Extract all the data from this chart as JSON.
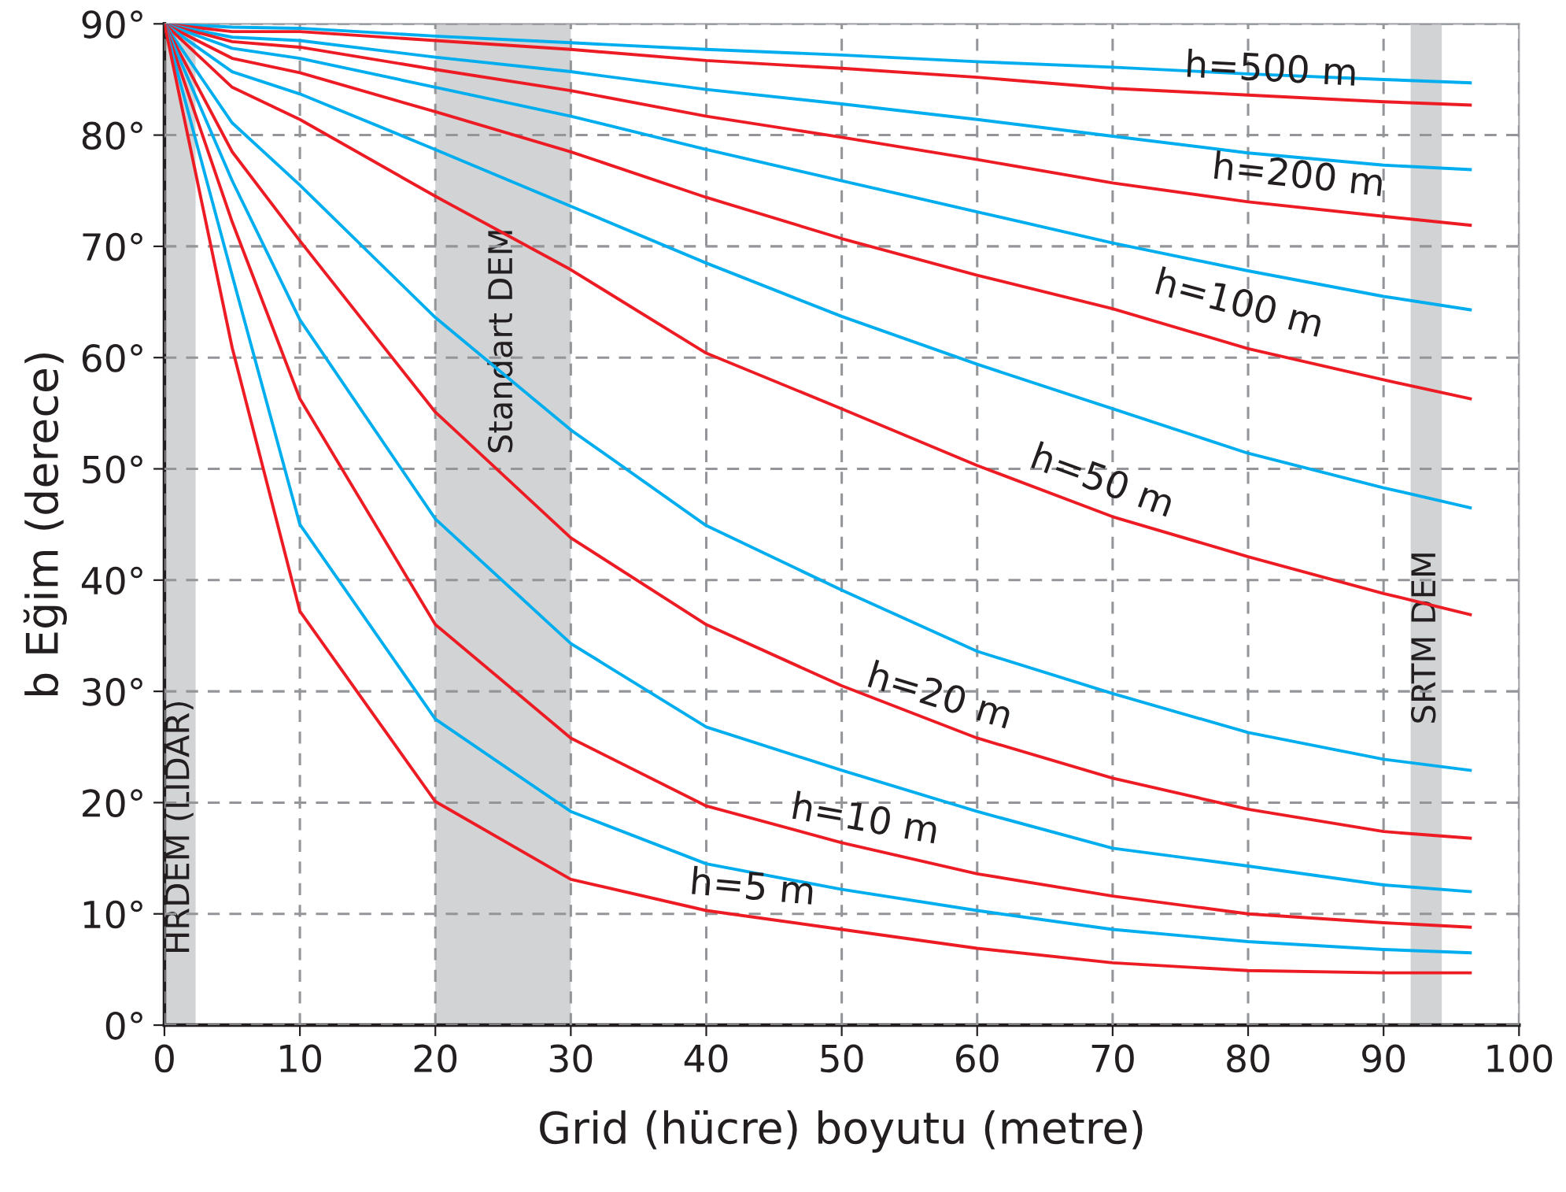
{
  "chart_data": {
    "type": "line",
    "xlabel": "Grid (hücre) boyutu (metre)",
    "ylabel": "b Eğim (derece)",
    "x": [
      0,
      5,
      10,
      20,
      30,
      40,
      50,
      60,
      70,
      80,
      90,
      96.4
    ],
    "series": [
      {
        "color": "#00aeef",
        "values": [
          90,
          89.7,
          89.6,
          88.9,
          88.3,
          87.7,
          87.2,
          86.6,
          86.1,
          85.5,
          85.0,
          84.7
        ]
      },
      {
        "color": "#ed1c24",
        "values": [
          90,
          89.3,
          89.3,
          88.5,
          87.7,
          86.7,
          86.0,
          85.2,
          84.2,
          83.6,
          83.0,
          82.7
        ]
      },
      {
        "color": "#00aeef",
        "values": [
          90,
          88.8,
          88.5,
          87.0,
          85.7,
          84.1,
          82.8,
          81.4,
          79.9,
          78.4,
          77.3,
          76.9
        ]
      },
      {
        "color": "#ed1c24",
        "values": [
          90,
          88.4,
          87.9,
          85.9,
          84.0,
          81.7,
          79.8,
          77.8,
          75.7,
          74.0,
          72.7,
          71.9
        ]
      },
      {
        "color": "#00aeef",
        "values": [
          90,
          87.8,
          86.9,
          84.3,
          81.7,
          78.7,
          75.9,
          73.1,
          70.3,
          67.8,
          65.5,
          64.3
        ]
      },
      {
        "color": "#ed1c24",
        "values": [
          90,
          86.9,
          85.6,
          82.1,
          78.5,
          74.4,
          70.7,
          67.4,
          64.4,
          60.8,
          58.0,
          56.3
        ]
      },
      {
        "color": "#00aeef",
        "values": [
          90,
          85.7,
          83.7,
          78.7,
          73.6,
          68.5,
          63.7,
          59.4,
          55.4,
          51.4,
          48.3,
          46.5
        ]
      },
      {
        "color": "#ed1c24",
        "values": [
          90,
          84.3,
          81.4,
          74.5,
          67.9,
          60.4,
          55.4,
          50.3,
          45.7,
          42.1,
          38.8,
          36.9
        ]
      },
      {
        "color": "#00aeef",
        "values": [
          90,
          81.1,
          75.5,
          63.6,
          53.5,
          44.9,
          39.1,
          33.6,
          29.8,
          26.3,
          23.9,
          22.9
        ]
      },
      {
        "color": "#ed1c24",
        "values": [
          90,
          78.5,
          70.5,
          55.1,
          43.8,
          36.0,
          30.5,
          25.8,
          22.2,
          19.4,
          17.4,
          16.8
        ]
      },
      {
        "color": "#00aeef",
        "values": [
          90,
          75.9,
          63.4,
          45.5,
          34.3,
          26.8,
          22.9,
          19.2,
          15.9,
          14.3,
          12.6,
          12.0
        ]
      },
      {
        "color": "#ed1c24",
        "values": [
          90,
          72.2,
          56.3,
          36.0,
          25.8,
          19.7,
          16.4,
          13.6,
          11.6,
          10.0,
          9.2,
          8.8
        ]
      },
      {
        "color": "#00aeef",
        "values": [
          90,
          67.4,
          45.0,
          27.5,
          19.2,
          14.5,
          12.2,
          10.3,
          8.6,
          7.5,
          6.8,
          6.5
        ]
      },
      {
        "color": "#ed1c24",
        "values": [
          90,
          60.9,
          37.2,
          20.1,
          13.1,
          10.3,
          8.6,
          6.9,
          5.6,
          4.9,
          4.7,
          4.7
        ]
      }
    ],
    "xlim": [
      0,
      100
    ],
    "xticks": [
      0,
      10,
      20,
      30,
      40,
      50,
      60,
      70,
      80,
      90,
      100
    ],
    "ylim": [
      0,
      90
    ],
    "yticks": [
      {
        "value": 0,
        "label": "0°"
      },
      {
        "value": 10,
        "label": "10°"
      },
      {
        "value": 20,
        "label": "20°"
      },
      {
        "value": 30,
        "label": "30°"
      },
      {
        "value": 40,
        "label": "40°"
      },
      {
        "value": 50,
        "label": "50°"
      },
      {
        "value": 60,
        "label": "60°"
      },
      {
        "value": 70,
        "label": "70°"
      },
      {
        "value": 80,
        "label": "80°"
      },
      {
        "value": 90,
        "label": "90°"
      }
    ],
    "bands": [
      {
        "axis": "x",
        "from": 0,
        "to": 2.3,
        "label": "HRDEM (LIDAR)",
        "color": "#d1d3d4"
      },
      {
        "axis": "x",
        "from": 20,
        "to": 30,
        "label": "Standart DEM",
        "color": "#d1d3d4"
      },
      {
        "axis": "x",
        "from": 92,
        "to": 94.3,
        "label": "SRTM DEM",
        "color": "#d1d3d4"
      }
    ],
    "annotations": [
      "h=500 m",
      "h=200 m",
      "h=100 m",
      "h=50 m",
      "h=20 m",
      "h=10 m",
      "h=5 m"
    ],
    "grid": true,
    "line_style": "solid",
    "marker": "none"
  }
}
